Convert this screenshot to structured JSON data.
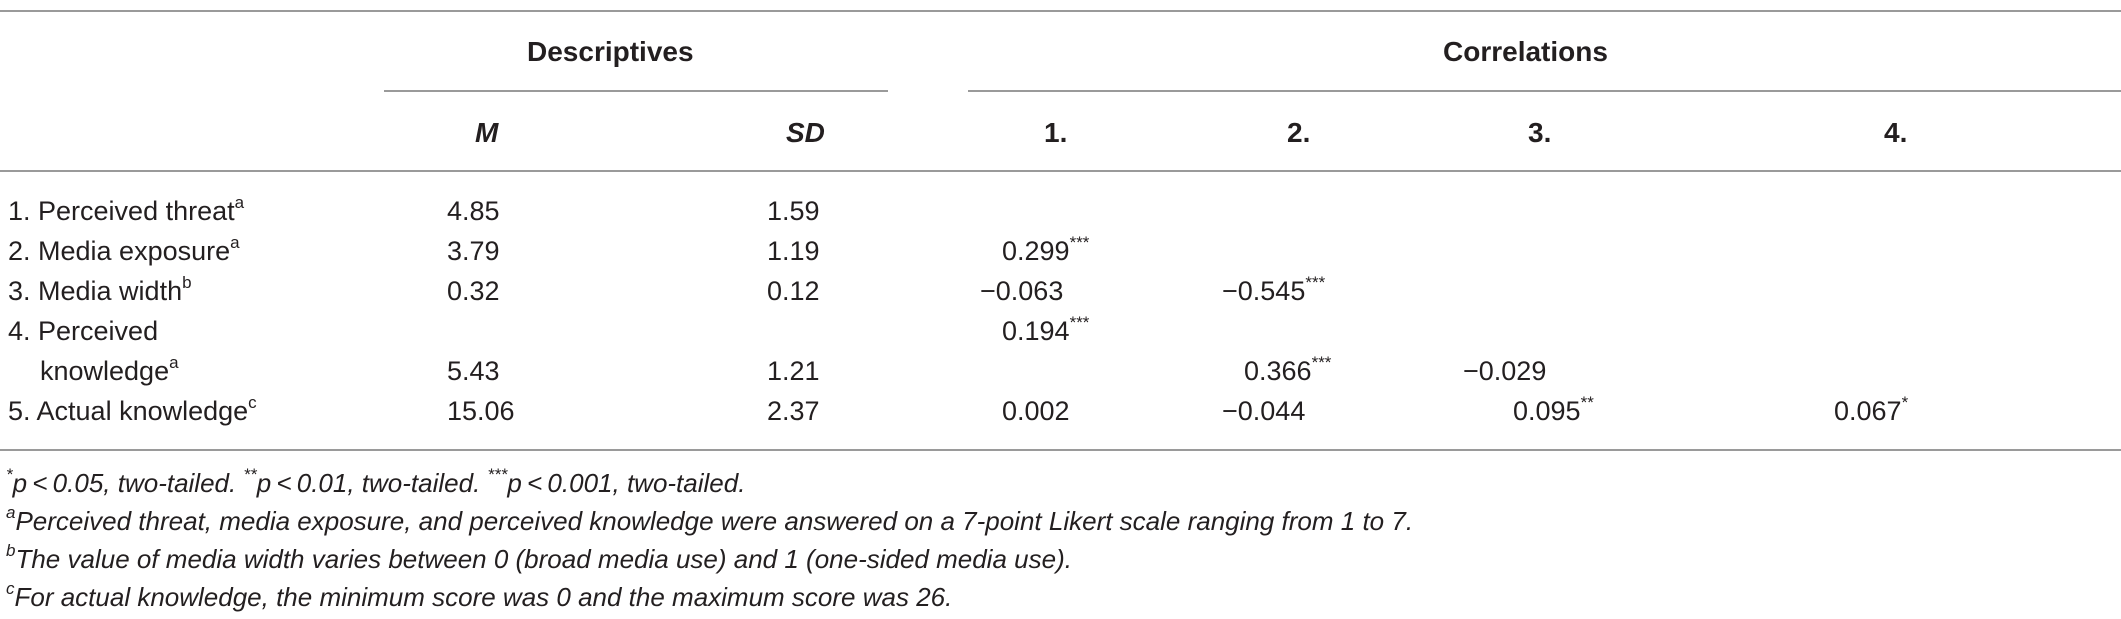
{
  "table": {
    "group_headers": {
      "descriptives": "Descriptives",
      "correlations": "Correlations"
    },
    "col_headers": {
      "m": "M",
      "sd": "SD",
      "c1": "1.",
      "c2": "2.",
      "c3": "3.",
      "c4": "4."
    },
    "rows": [
      {
        "label": "1. Perceived threat",
        "sup": "a",
        "m": "4.85",
        "sd": "1.59"
      },
      {
        "label": "2. Media exposure",
        "sup": "a",
        "m": "3.79",
        "sd": "1.19",
        "c1": "0.299",
        "c1_sup": "***"
      },
      {
        "label": "3. Media width",
        "sup": "b",
        "m": "0.32",
        "sd": "0.12",
        "c1": "−0.063",
        "c2": "−0.545",
        "c2_sup": "***"
      },
      {
        "label_line1": "4. Perceived",
        "label_line2": "knowledge",
        "sup": "a",
        "m": "5.43",
        "sd": "1.21",
        "c1": "0.194",
        "c1_sup": "***",
        "c2": "0.366",
        "c2_sup": "***",
        "c3": "−0.029"
      },
      {
        "label": "5. Actual knowledge",
        "sup": "c",
        "m": "15.06",
        "sd": "2.37",
        "c1": "0.002",
        "c2": "−0.044",
        "c3": "0.095",
        "c3_sup": "**",
        "c4": "0.067",
        "c4_sup": "*"
      }
    ]
  },
  "notes": [
    {
      "sup": "*",
      "text": "p < 0.05, two-tailed. ",
      "sup2": "**",
      "text2": "p < 0.01, two-tailed. ",
      "sup3": "***",
      "text3": "p < 0.001, two-tailed."
    },
    {
      "sup": "a",
      "text": "Perceived threat, media exposure, and perceived knowledge were answered on a 7-point Likert scale ranging from 1 to 7."
    },
    {
      "sup": "b",
      "text": "The value of media width varies between 0 (broad media use) and 1 (one-sided media use)."
    },
    {
      "sup": "c",
      "text": "For actual knowledge, the minimum score was 0 and the maximum score was 26."
    }
  ]
}
